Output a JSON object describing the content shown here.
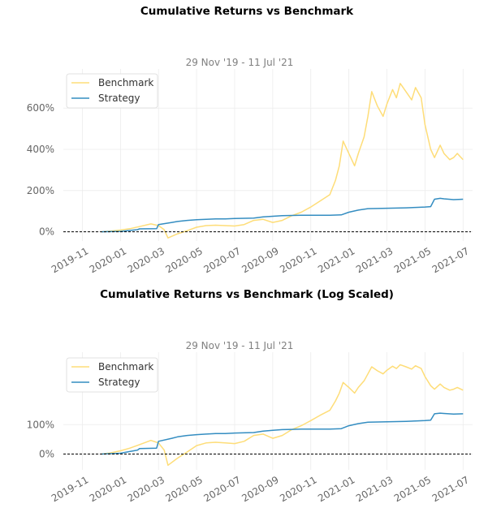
{
  "chart_data": [
    {
      "type": "line",
      "title": "Cumulative Returns vs Benchmark",
      "subtitle": "29 Nov '19 - 11 Jul '21",
      "ylabel_format": "percent",
      "y_ticks": [
        {
          "value": 0,
          "label": "0%"
        },
        {
          "value": 200,
          "label": "200%"
        },
        {
          "value": 400,
          "label": "400%"
        },
        {
          "value": 600,
          "label": "600%"
        }
      ],
      "ylim": [
        -45,
        790
      ],
      "x_ticks": [
        "2019-11",
        "2020-01",
        "2020-03",
        "2020-05",
        "2020-07",
        "2020-09",
        "2020-11",
        "2021-01",
        "2021-03",
        "2021-05",
        "2021-07"
      ],
      "xlim": [
        -1.0,
        20.5
      ],
      "legend": {
        "placement": "top-left",
        "entries": [
          "Benchmark",
          "Strategy"
        ]
      },
      "baseline": 0,
      "series": [
        {
          "name": "Benchmark",
          "color": "#fedd78",
          "x": [
            1.0,
            1.5,
            2.0,
            2.5,
            3.0,
            3.6,
            4.0,
            4.3,
            4.5,
            5.0,
            5.5,
            6.0,
            6.5,
            7.0,
            7.5,
            8.0,
            8.5,
            9.0,
            9.5,
            10.0,
            10.5,
            11.0,
            11.5,
            12.0,
            12.5,
            13.0,
            13.3,
            13.5,
            13.7,
            14.0,
            14.3,
            14.5,
            14.8,
            15.0,
            15.2,
            15.5,
            15.8,
            16.0,
            16.3,
            16.5,
            16.7,
            17.0,
            17.3,
            17.5,
            17.8,
            18.0,
            18.3,
            18.5,
            18.8,
            19.0,
            19.3,
            19.5,
            19.7,
            20.0
          ],
          "y": [
            0,
            3,
            8,
            15,
            25,
            38,
            30,
            10,
            -30,
            -10,
            5,
            22,
            30,
            32,
            30,
            28,
            35,
            55,
            60,
            45,
            55,
            78,
            95,
            120,
            150,
            180,
            250,
            320,
            440,
            380,
            320,
            380,
            460,
            560,
            680,
            610,
            560,
            620,
            690,
            650,
            720,
            680,
            640,
            700,
            650,
            520,
            400,
            360,
            420,
            380,
            350,
            360,
            380,
            350
          ]
        },
        {
          "name": "Strategy",
          "color": "#348dc1",
          "x": [
            1.0,
            2.0,
            2.9,
            3.0,
            3.9,
            4.0,
            4.7,
            5.0,
            5.5,
            6.0,
            6.5,
            7.0,
            7.5,
            8.0,
            9.0,
            9.5,
            10.0,
            10.5,
            11.0,
            11.5,
            12.0,
            13.0,
            13.6,
            14.0,
            14.5,
            15.0,
            16.0,
            17.0,
            17.5,
            18.0,
            18.3,
            18.5,
            18.8,
            19.0,
            19.5,
            20.0
          ],
          "y": [
            0,
            2,
            10,
            14,
            15,
            35,
            45,
            50,
            55,
            58,
            60,
            62,
            62,
            64,
            66,
            72,
            75,
            78,
            79,
            80,
            80,
            80,
            82,
            95,
            105,
            112,
            114,
            116,
            118,
            120,
            122,
            158,
            162,
            160,
            156,
            158
          ]
        }
      ]
    },
    {
      "type": "line",
      "title": "Cumulative Returns vs Benchmark (Log Scaled)",
      "subtitle": "29 Nov '19 - 11 Jul '21",
      "ylabel_format": "percent",
      "yscale": "log",
      "y_ticks": [
        {
          "value": 0,
          "label": "0%"
        },
        {
          "value": 100,
          "label": "100%"
        }
      ],
      "ylim": [
        -45,
        1000
      ],
      "x_ticks": [
        "2019-11",
        "2020-01",
        "2020-03",
        "2020-05",
        "2020-07",
        "2020-09",
        "2020-11",
        "2021-01",
        "2021-03",
        "2021-05",
        "2021-07"
      ],
      "xlim": [
        -1.0,
        20.5
      ],
      "legend": {
        "placement": "top-left",
        "entries": [
          "Benchmark",
          "Strategy"
        ]
      },
      "baseline": 0,
      "series": [
        {
          "name": "Benchmark",
          "color": "#fedd78",
          "x": [
            1.0,
            1.5,
            2.0,
            2.5,
            3.0,
            3.6,
            4.0,
            4.3,
            4.5,
            5.0,
            5.5,
            6.0,
            6.5,
            7.0,
            7.5,
            8.0,
            8.5,
            9.0,
            9.5,
            10.0,
            10.5,
            11.0,
            11.5,
            12.0,
            12.5,
            13.0,
            13.3,
            13.5,
            13.7,
            14.0,
            14.3,
            14.5,
            14.8,
            15.0,
            15.2,
            15.5,
            15.8,
            16.0,
            16.3,
            16.5,
            16.7,
            17.0,
            17.3,
            17.5,
            17.8,
            18.0,
            18.3,
            18.5,
            18.8,
            19.0,
            19.3,
            19.5,
            19.7,
            20.0
          ],
          "y": [
            0,
            3,
            8,
            15,
            25,
            38,
            30,
            10,
            -30,
            -10,
            5,
            22,
            30,
            32,
            30,
            28,
            35,
            55,
            60,
            45,
            55,
            78,
            95,
            120,
            150,
            180,
            250,
            320,
            440,
            380,
            320,
            380,
            460,
            560,
            680,
            610,
            560,
            620,
            690,
            650,
            720,
            680,
            640,
            700,
            650,
            520,
            400,
            360,
            420,
            380,
            350,
            360,
            380,
            350
          ]
        },
        {
          "name": "Strategy",
          "color": "#348dc1",
          "x": [
            1.0,
            2.0,
            2.9,
            3.0,
            3.9,
            4.0,
            4.7,
            5.0,
            5.5,
            6.0,
            6.5,
            7.0,
            7.5,
            8.0,
            9.0,
            9.5,
            10.0,
            10.5,
            11.0,
            11.5,
            12.0,
            13.0,
            13.6,
            14.0,
            14.5,
            15.0,
            16.0,
            17.0,
            17.5,
            18.0,
            18.3,
            18.5,
            18.8,
            19.0,
            19.5,
            20.0
          ],
          "y": [
            0,
            2,
            10,
            14,
            15,
            35,
            45,
            50,
            55,
            58,
            60,
            62,
            62,
            64,
            66,
            72,
            75,
            78,
            79,
            80,
            80,
            80,
            82,
            95,
            105,
            112,
            114,
            116,
            118,
            120,
            122,
            158,
            162,
            160,
            156,
            158
          ]
        }
      ]
    }
  ]
}
